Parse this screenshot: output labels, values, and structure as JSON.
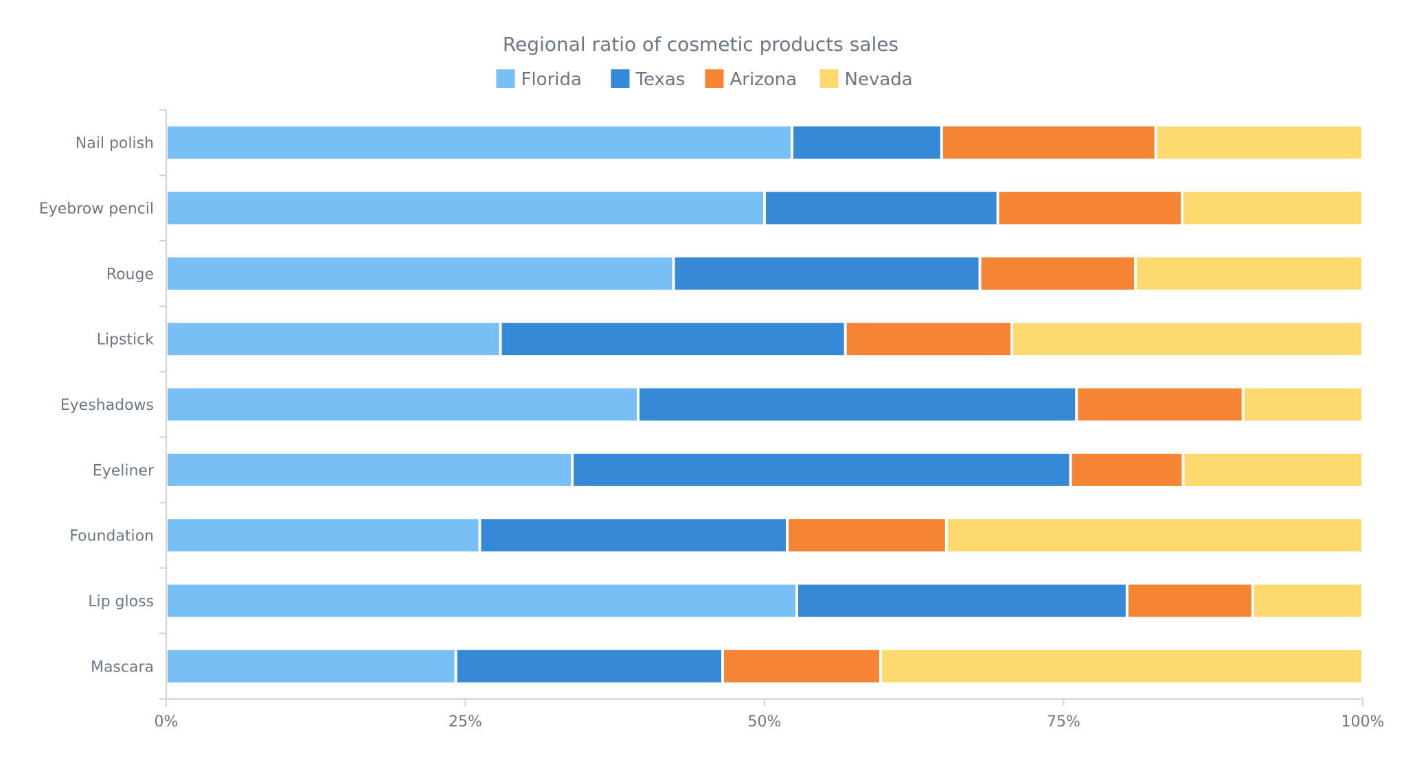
{
  "chart_data": {
    "type": "bar",
    "orientation": "horizontal",
    "stacked": "percent",
    "title": "Regional ratio of cosmetic products sales",
    "xlabel": "",
    "ylabel": "",
    "xlim": [
      0,
      100
    ],
    "x_ticks": [
      "0%",
      "25%",
      "50%",
      "75%",
      "100%"
    ],
    "legend_position": "top",
    "grid": false,
    "categories": [
      "Nail polish",
      "Eyebrow pencil",
      "Rouge",
      "Lipstick",
      "Eyeshadows",
      "Eyeliner",
      "Foundation",
      "Lip gloss",
      "Mascara"
    ],
    "series": [
      {
        "name": "Florida",
        "color": "#77bff5",
        "values": [
          52.3,
          50.0,
          42.4,
          27.9,
          39.4,
          33.9,
          26.2,
          52.7,
          24.2
        ]
      },
      {
        "name": "Texas",
        "color": "#3589d6",
        "values": [
          12.5,
          19.5,
          25.6,
          28.8,
          36.6,
          41.6,
          25.7,
          27.6,
          22.3
        ]
      },
      {
        "name": "Arizona",
        "color": "#f58535",
        "values": [
          17.9,
          15.4,
          13.0,
          13.9,
          13.9,
          9.4,
          13.3,
          10.5,
          13.2
        ]
      },
      {
        "name": "Nevada",
        "color": "#fed970",
        "values": [
          17.3,
          15.1,
          19.0,
          29.3,
          10.0,
          15.0,
          34.8,
          9.2,
          40.3
        ]
      }
    ]
  }
}
